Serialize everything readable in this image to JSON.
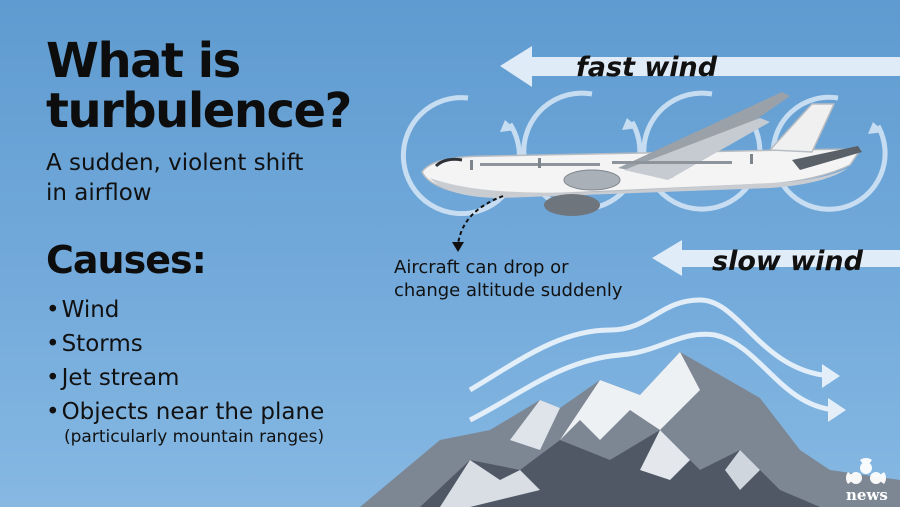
{
  "heading": {
    "title": "What is\nturbulence?",
    "subtitle": "A sudden, violent shift\nin airflow"
  },
  "causes": {
    "heading": "Causes:",
    "items": [
      "Wind",
      "Storms",
      "Jet stream",
      "Objects near the plane"
    ],
    "note": "(particularly mountain ranges)"
  },
  "winds": {
    "fast_label": "fast wind",
    "slow_label": "slow wind"
  },
  "aircraft_note": "Aircraft can drop or\nchange altitude suddenly",
  "branding": {
    "logo_text": "news"
  },
  "colors": {
    "sky_top": "#5f9bd0",
    "sky_bottom": "#86b8e2",
    "arrow_fill": "#e9f2fb",
    "text": "#111111"
  }
}
